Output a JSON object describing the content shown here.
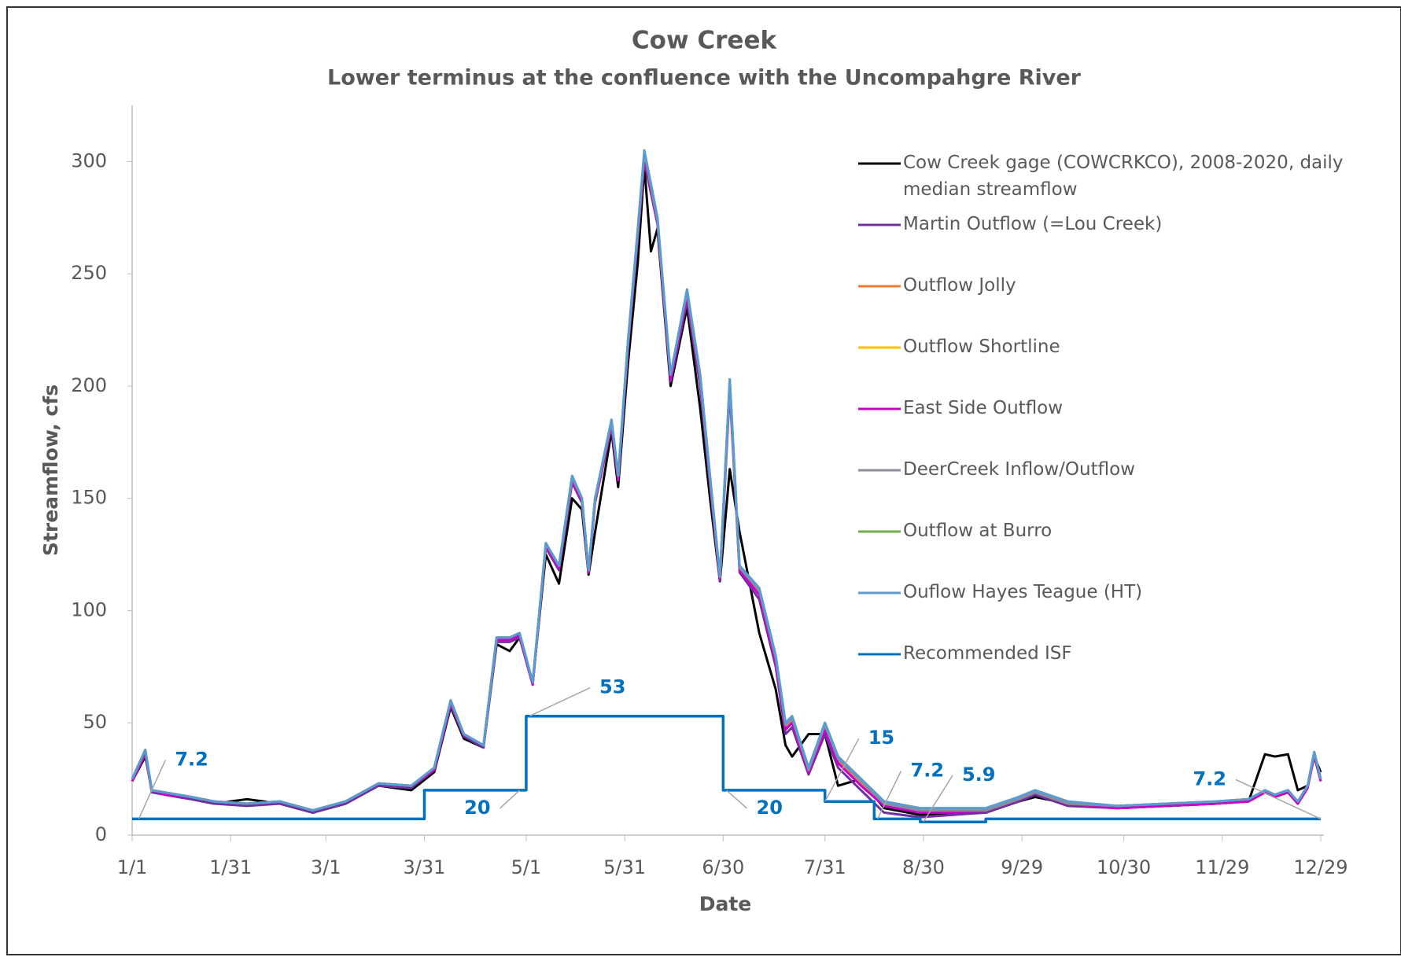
{
  "chart_data": {
    "type": "line",
    "title": "Cow Creek",
    "subtitle": "Lower terminus at the confluence with the Uncompahgre River",
    "x_label": "Date",
    "y_label": "Streamflow, cfs",
    "xlim": [
      0,
      362
    ],
    "ylim": [
      0,
      325
    ],
    "yticks": [
      0,
      50,
      100,
      150,
      200,
      250,
      300
    ],
    "xticks": [
      {
        "value": 0,
        "label": "1/1"
      },
      {
        "value": 30,
        "label": "1/31"
      },
      {
        "value": 59,
        "label": "3/1"
      },
      {
        "value": 89,
        "label": "3/31"
      },
      {
        "value": 120,
        "label": "5/1"
      },
      {
        "value": 150,
        "label": "5/31"
      },
      {
        "value": 180,
        "label": "6/30"
      },
      {
        "value": 211,
        "label": "7/31"
      },
      {
        "value": 241,
        "label": "8/30"
      },
      {
        "value": 271,
        "label": "9/29"
      },
      {
        "value": 302,
        "label": "10/30"
      },
      {
        "value": 332,
        "label": "11/29"
      },
      {
        "value": 362,
        "label": "12/29"
      }
    ],
    "grid": false,
    "x": [
      0,
      4,
      6,
      10,
      18,
      25,
      35,
      45,
      55,
      65,
      75,
      85,
      92,
      97,
      101,
      107,
      111,
      115,
      118,
      122,
      126,
      130,
      134,
      137,
      139,
      141,
      146,
      148,
      151,
      154,
      156,
      158,
      160,
      164,
      169,
      173,
      176,
      179,
      182,
      185,
      191,
      196,
      199,
      201,
      206,
      211,
      215,
      222,
      229,
      240,
      250,
      260,
      270,
      275,
      285,
      300,
      315,
      330,
      340,
      345,
      348,
      352,
      355,
      358,
      360,
      362
    ],
    "series": [
      {
        "name": "Cow Creek gage (COWCRKCO), 2008-2020, daily median streamflow",
        "color": "#000000",
        "values": [
          24,
          35,
          20,
          18,
          16,
          14,
          16,
          14,
          10,
          14,
          22,
          20,
          28,
          57,
          43,
          39,
          85,
          82,
          88,
          68,
          125,
          112,
          150,
          145,
          116,
          135,
          180,
          155,
          210,
          255,
          298,
          260,
          270,
          200,
          235,
          190,
          150,
          113,
          163,
          135,
          90,
          65,
          40,
          35,
          45,
          45,
          22,
          25,
          12,
          9,
          10,
          10,
          15,
          17,
          14,
          12,
          13,
          14,
          15,
          36,
          35,
          36,
          20,
          22,
          35,
          28
        ]
      },
      {
        "name": "Martin Outflow (=Lou Creek)",
        "color": "#7030a0",
        "values": [
          24,
          36,
          19,
          18,
          16,
          14,
          13,
          14,
          10,
          14,
          22,
          21,
          29,
          58,
          44,
          39,
          86,
          86,
          88,
          67,
          128,
          118,
          157,
          148,
          117,
          148,
          182,
          158,
          217,
          266,
          300,
          286,
          272,
          202,
          238,
          200,
          156,
          113,
          198,
          117,
          105,
          75,
          45,
          48,
          27,
          45,
          30,
          20,
          10,
          8,
          9,
          10,
          15,
          18,
          13,
          12,
          13,
          14,
          15,
          19,
          17,
          19,
          14,
          21,
          35,
          24
        ]
      },
      {
        "name": "Outflow Jolly",
        "color": "#ed7d31",
        "values": [
          24,
          37,
          20,
          19,
          17,
          15,
          14,
          15,
          11,
          15,
          23,
          22,
          29,
          59,
          45,
          40,
          87,
          87,
          89,
          68,
          129,
          119,
          158,
          149,
          117,
          149,
          183,
          159,
          218,
          268,
          302,
          288,
          273,
          204,
          241,
          203,
          158,
          114,
          201,
          118,
          108,
          78,
          48,
          51,
          29,
          48,
          33,
          23,
          14,
          11,
          11,
          11,
          16,
          19,
          14,
          12,
          13,
          14,
          15,
          19,
          17,
          19,
          14,
          21,
          36,
          24
        ]
      },
      {
        "name": "Outflow Shortline",
        "color": "#ffc000",
        "values": [
          25,
          37,
          20,
          19,
          17,
          15,
          14,
          15,
          11,
          15,
          23,
          22,
          30,
          59,
          45,
          40,
          87,
          88,
          89,
          68,
          129,
          120,
          159,
          150,
          118,
          149,
          184,
          159,
          219,
          269,
          303,
          289,
          274,
          204,
          242,
          204,
          159,
          115,
          202,
          119,
          109,
          79,
          49,
          52,
          30,
          49,
          34,
          24,
          15,
          12,
          11,
          11,
          16,
          19,
          14,
          13,
          14,
          14,
          15,
          19,
          18,
          19,
          15,
          22,
          36,
          25
        ]
      },
      {
        "name": "East Side Outflow",
        "color": "#cc00cc",
        "values": [
          24,
          37,
          20,
          18,
          17,
          15,
          14,
          15,
          11,
          15,
          23,
          22,
          29,
          59,
          45,
          40,
          87,
          87,
          89,
          67,
          129,
          119,
          158,
          149,
          117,
          149,
          183,
          158,
          218,
          268,
          302,
          288,
          273,
          203,
          241,
          203,
          158,
          114,
          201,
          118,
          107,
          77,
          47,
          50,
          28,
          47,
          32,
          22,
          13,
          10,
          10,
          11,
          16,
          19,
          14,
          12,
          13,
          14,
          15,
          19,
          17,
          19,
          14,
          21,
          36,
          24
        ]
      },
      {
        "name": "DeerCreek Inflow/Outflow",
        "color": "#8c8c9c",
        "values": [
          25,
          38,
          20,
          19,
          17,
          15,
          14,
          15,
          11,
          15,
          23,
          22,
          30,
          60,
          45,
          40,
          88,
          88,
          90,
          68,
          130,
          120,
          159,
          150,
          118,
          150,
          184,
          160,
          219,
          269,
          304,
          289,
          274,
          205,
          242,
          204,
          159,
          115,
          202,
          119,
          109,
          79,
          49,
          52,
          29,
          49,
          34,
          24,
          14,
          11,
          11,
          11,
          16,
          19,
          14,
          13,
          14,
          15,
          16,
          20,
          18,
          20,
          15,
          22,
          37,
          25
        ]
      },
      {
        "name": "Outflow at Burro",
        "color": "#70ad47",
        "values": [
          25,
          38,
          20,
          19,
          17,
          15,
          14,
          15,
          11,
          15,
          23,
          22,
          30,
          60,
          45,
          40,
          88,
          88,
          90,
          68,
          130,
          120,
          160,
          150,
          118,
          150,
          185,
          160,
          220,
          270,
          304,
          290,
          275,
          205,
          243,
          205,
          160,
          115,
          203,
          120,
          110,
          80,
          50,
          53,
          30,
          50,
          35,
          25,
          15,
          12,
          12,
          12,
          17,
          20,
          15,
          13,
          14,
          15,
          16,
          20,
          18,
          20,
          15,
          22,
          37,
          25
        ]
      },
      {
        "name": "Ouflow Hayes Teague (HT)",
        "color": "#5b9bd5",
        "values": [
          25,
          38,
          20,
          19,
          17,
          15,
          14,
          15,
          11,
          15,
          23,
          22,
          30,
          60,
          45,
          40,
          88,
          88,
          90,
          68,
          130,
          120,
          160,
          150,
          118,
          150,
          185,
          160,
          220,
          270,
          305,
          290,
          275,
          205,
          243,
          205,
          160,
          115,
          203,
          120,
          110,
          80,
          50,
          53,
          30,
          50,
          35,
          25,
          15,
          12,
          12,
          12,
          17,
          20,
          15,
          13,
          14,
          15,
          16,
          20,
          18,
          20,
          15,
          22,
          37,
          25
        ]
      },
      {
        "name": "Recommended ISF",
        "color": "#0070c0",
        "x": [
          0,
          89,
          89,
          120,
          120,
          180,
          180,
          211,
          211,
          226,
          226,
          240,
          240,
          260,
          260,
          362
        ],
        "values": [
          7.2,
          7.2,
          20,
          20,
          53,
          53,
          20,
          20,
          15,
          15,
          7.2,
          7.2,
          5.9,
          5.9,
          7.2,
          7.2
        ]
      }
    ],
    "annotations": [
      {
        "x": 2,
        "value": 7.2
      },
      {
        "x": 121,
        "value": 53
      },
      {
        "x": 118,
        "value": 20
      },
      {
        "x": 181,
        "value": 20
      },
      {
        "x": 211,
        "value": 15
      },
      {
        "x": 227,
        "value": 7.2
      },
      {
        "x": 241,
        "value": 5.9
      },
      {
        "x": 362,
        "value": 7.2
      }
    ]
  }
}
